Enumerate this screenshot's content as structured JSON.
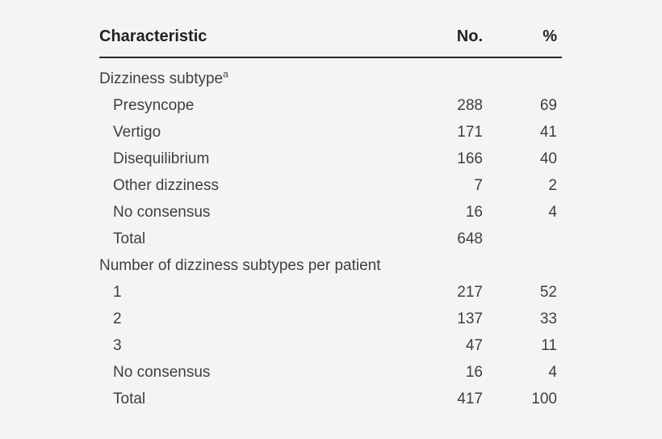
{
  "page": {
    "background_color": "#f5f4f5",
    "text_color": "#403e3d",
    "header_text_color": "#232221",
    "rule_color": "#2b2a28"
  },
  "table": {
    "header": {
      "characteristic": "Characteristic",
      "no": "No.",
      "pct": "%"
    },
    "rows": [
      {
        "label": "Dizziness subtype",
        "sup": "a",
        "no": "",
        "pct": "",
        "indent": false
      },
      {
        "label": "Presyncope",
        "no": "288",
        "pct": "69",
        "indent": true
      },
      {
        "label": "Vertigo",
        "no": "171",
        "pct": "41",
        "indent": true
      },
      {
        "label": "Disequilibrium",
        "no": "166",
        "pct": "40",
        "indent": true
      },
      {
        "label": "Other dizziness",
        "no": "7",
        "pct": "2",
        "indent": true
      },
      {
        "label": "No consensus",
        "no": "16",
        "pct": "4",
        "indent": true
      },
      {
        "label": "Total",
        "no": "648",
        "pct": "",
        "indent": true
      },
      {
        "label": "Number of dizziness subtypes per patient",
        "no": "",
        "pct": "",
        "indent": false
      },
      {
        "label": "1",
        "no": "217",
        "pct": "52",
        "indent": true
      },
      {
        "label": "2",
        "no": "137",
        "pct": "33",
        "indent": true
      },
      {
        "label": "3",
        "no": "47",
        "pct": "11",
        "indent": true
      },
      {
        "label": "No consensus",
        "no": "16",
        "pct": "4",
        "indent": true
      },
      {
        "label": "Total",
        "no": "417",
        "pct": "100",
        "indent": true
      }
    ]
  }
}
